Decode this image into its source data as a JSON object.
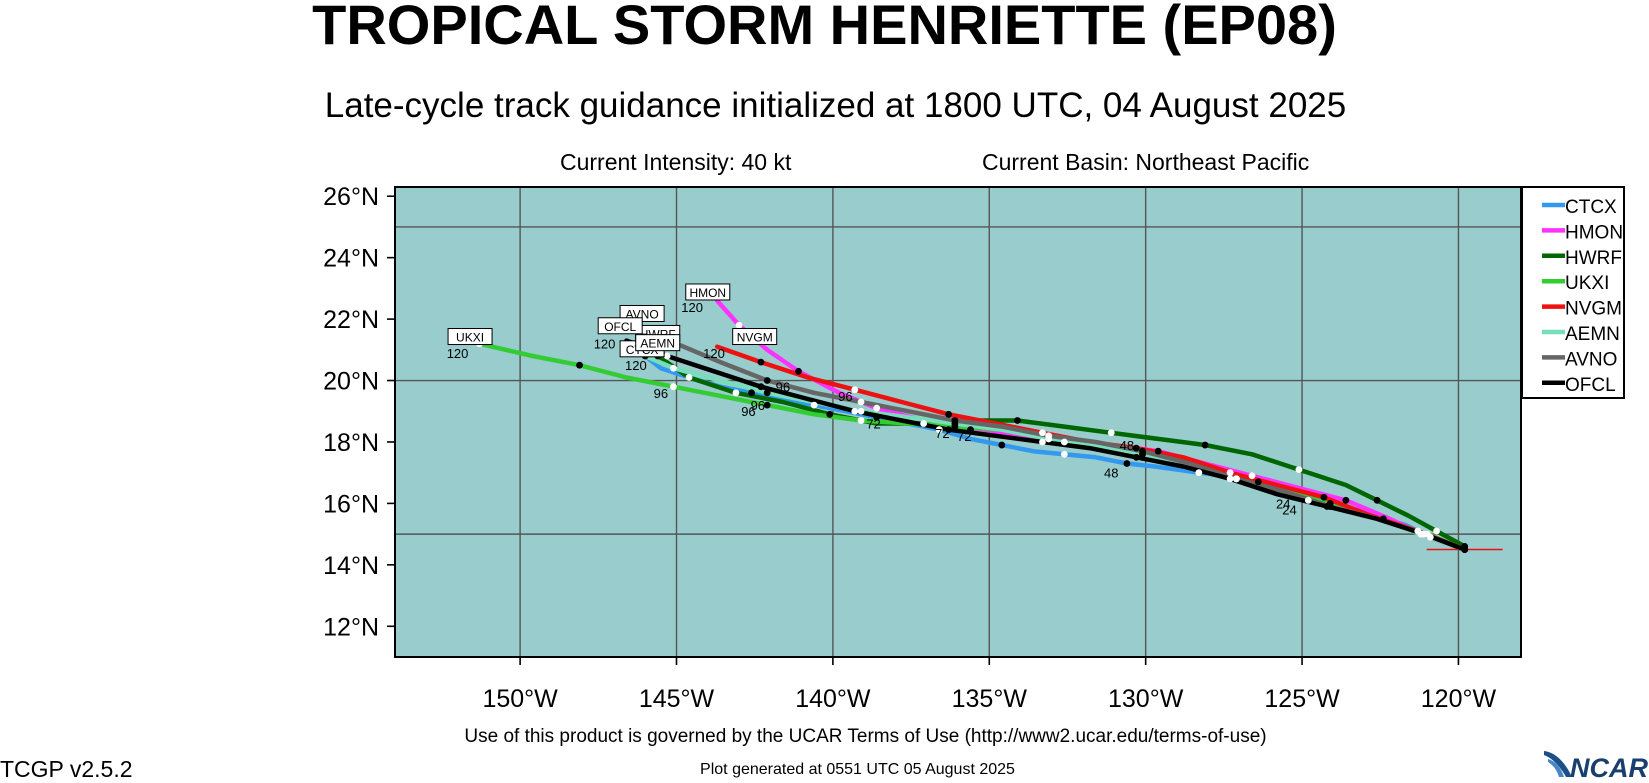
{
  "header": {
    "title": "TROPICAL STORM HENRIETTE (EP08)",
    "subtitle": "Late-cycle track guidance initialized at 1800 UTC, 04 August 2025",
    "intensity": "Current Intensity: 40 kt",
    "basin": "Current Basin: Northeast Pacific"
  },
  "footer": {
    "terms": "Use of this product is governed by the UCAR Terms of Use (http://www2.ucar.edu/terms-of-use)",
    "version": "TCGP v2.5.2",
    "generated": "Plot generated at 0551 UTC   05 August 2025",
    "logo_text": "NCAR"
  },
  "colors": {
    "ocean": "#99cccc",
    "CTCX": "#3399ee",
    "HMON": "#ff33ff",
    "HWRF": "#006600",
    "UKXI": "#33cc33",
    "NVGM": "#ee1111",
    "AEMN": "#77ddbb",
    "AVNO": "#666666",
    "OFCL": "#000000"
  },
  "chart_data": {
    "type": "line",
    "xlim": [
      -154,
      -118
    ],
    "ylim": [
      11,
      26.3
    ],
    "x_ticks": [
      {
        "value": -150,
        "label": "150°W"
      },
      {
        "value": -145,
        "label": "145°W"
      },
      {
        "value": -140,
        "label": "140°W"
      },
      {
        "value": -135,
        "label": "135°W"
      },
      {
        "value": -130,
        "label": "130°W"
      },
      {
        "value": -125,
        "label": "125°W"
      },
      {
        "value": -120,
        "label": "120°W"
      }
    ],
    "y_ticks": [
      {
        "value": 12,
        "label": "12°N"
      },
      {
        "value": 14,
        "label": "14°N"
      },
      {
        "value": 16,
        "label": "16°N"
      },
      {
        "value": 18,
        "label": "18°N"
      },
      {
        "value": 20,
        "label": "20°N"
      },
      {
        "value": 22,
        "label": "22°N"
      },
      {
        "value": 24,
        "label": "24°N"
      },
      {
        "value": 26,
        "label": "26°N"
      }
    ],
    "gridlines": {
      "lon": [
        -150,
        -145,
        -140,
        -135,
        -130,
        -125,
        -120
      ],
      "lat": [
        15,
        20,
        25
      ]
    },
    "legend_position": "right",
    "current_position": {
      "lon": -119.8,
      "lat": 14.5
    },
    "series": [
      {
        "name": "CTCX",
        "points": [
          [
            -119.8,
            14.5
          ],
          [
            -120.9,
            14.9
          ],
          [
            -121.7,
            15.3
          ],
          [
            -122.4,
            15.5
          ],
          [
            -123.3,
            15.8
          ],
          [
            -124.8,
            16.1
          ],
          [
            -125.6,
            16.4
          ],
          [
            -126.4,
            16.7
          ],
          [
            -127.4,
            16.9
          ],
          [
            -128.3,
            17.0
          ],
          [
            -129.7,
            17.2
          ],
          [
            -130.6,
            17.3
          ],
          [
            -131.6,
            17.5
          ],
          [
            -132.6,
            17.6
          ],
          [
            -133.6,
            17.7
          ],
          [
            -134.6,
            17.9
          ],
          [
            -135.6,
            18.1
          ],
          [
            -136.6,
            18.4
          ],
          [
            -137.6,
            18.6
          ],
          [
            -138.6,
            18.8
          ],
          [
            -139.6,
            19.0
          ],
          [
            -140.6,
            19.2
          ],
          [
            -141.6,
            19.4
          ],
          [
            -142.6,
            19.6
          ],
          [
            -143.6,
            19.8
          ],
          [
            -144.6,
            20.1
          ],
          [
            -145.5,
            20.4
          ],
          [
            -146.0,
            20.8
          ]
        ],
        "labels": [
          {
            "text": "24",
            "lon": -125.6,
            "lat": 16.0
          },
          {
            "text": "48",
            "lon": -131.1,
            "lat": 17.0
          },
          {
            "text": "72",
            "lon": -135.8,
            "lat": 18.2
          },
          {
            "text": "96",
            "lon": -142.7,
            "lat": 19.0
          },
          {
            "text": "120",
            "lon": -146.3,
            "lat": 20.5
          }
        ],
        "label_box": {
          "text": "CTCX",
          "lon": -146.1,
          "lat": 21.0
        }
      },
      {
        "name": "HMON",
        "points": [
          [
            -119.8,
            14.5
          ],
          [
            -121.2,
            15.0
          ],
          [
            -122.2,
            15.5
          ],
          [
            -123.6,
            16.1
          ],
          [
            -125.1,
            16.5
          ],
          [
            -126.6,
            16.9
          ],
          [
            -128.1,
            17.3
          ],
          [
            -129.6,
            17.7
          ],
          [
            -131.1,
            17.9
          ],
          [
            -132.6,
            18.0
          ],
          [
            -134.1,
            18.2
          ],
          [
            -135.6,
            18.4
          ],
          [
            -137.1,
            18.7
          ],
          [
            -138.6,
            19.1
          ],
          [
            -139.8,
            19.6
          ],
          [
            -141.1,
            20.3
          ],
          [
            -142.1,
            21.0
          ],
          [
            -143.0,
            21.8
          ],
          [
            -143.7,
            22.6
          ]
        ],
        "labels": [
          {
            "text": "120",
            "lon": -144.5,
            "lat": 22.4
          }
        ],
        "label_box": {
          "text": "HMON",
          "lon": -144.0,
          "lat": 22.85
        }
      },
      {
        "name": "HWRF",
        "points": [
          [
            -119.8,
            14.6
          ],
          [
            -120.7,
            15.1
          ],
          [
            -121.6,
            15.6
          ],
          [
            -122.6,
            16.1
          ],
          [
            -123.6,
            16.6
          ],
          [
            -125.1,
            17.1
          ],
          [
            -126.6,
            17.6
          ],
          [
            -128.1,
            17.9
          ],
          [
            -129.6,
            18.1
          ],
          [
            -131.1,
            18.3
          ],
          [
            -132.6,
            18.5
          ],
          [
            -134.1,
            18.7
          ],
          [
            -135.6,
            18.7
          ],
          [
            -137.1,
            18.6
          ],
          [
            -138.6,
            18.6
          ],
          [
            -140.1,
            18.9
          ],
          [
            -141.6,
            19.3
          ],
          [
            -143.1,
            19.6
          ],
          [
            -144.6,
            20.1
          ],
          [
            -145.6,
            20.8
          ],
          [
            -146.2,
            21.1
          ]
        ],
        "labels": [
          {
            "text": "48",
            "lon": -130.6,
            "lat": 17.9
          },
          {
            "text": "72",
            "lon": -136.5,
            "lat": 18.3
          }
        ],
        "label_box": {
          "text": "HWRF",
          "lon": -145.6,
          "lat": 21.5
        }
      },
      {
        "name": "UKXI",
        "points": [
          [
            -119.8,
            14.5
          ],
          [
            -121.0,
            15.0
          ],
          [
            -122.6,
            15.5
          ],
          [
            -124.1,
            16.0
          ],
          [
            -125.6,
            16.4
          ],
          [
            -127.1,
            16.8
          ],
          [
            -128.6,
            17.2
          ],
          [
            -130.1,
            17.6
          ],
          [
            -131.6,
            17.9
          ],
          [
            -133.1,
            18.1
          ],
          [
            -134.6,
            18.4
          ],
          [
            -136.1,
            18.5
          ],
          [
            -137.6,
            18.6
          ],
          [
            -139.1,
            18.7
          ],
          [
            -140.6,
            18.9
          ],
          [
            -142.1,
            19.2
          ],
          [
            -143.6,
            19.5
          ],
          [
            -145.1,
            19.8
          ],
          [
            -146.6,
            20.1
          ],
          [
            -148.1,
            20.5
          ],
          [
            -149.6,
            20.8
          ],
          [
            -151.3,
            21.2
          ]
        ],
        "labels": [
          {
            "text": "24",
            "lon": -125.4,
            "lat": 15.8
          },
          {
            "text": "96",
            "lon": -145.5,
            "lat": 19.6
          },
          {
            "text": "120",
            "lon": -152.0,
            "lat": 20.9
          }
        ],
        "label_box": {
          "text": "UKXI",
          "lon": -151.6,
          "lat": 21.4
        }
      },
      {
        "name": "NVGM",
        "points": [
          [
            -119.8,
            14.5
          ],
          [
            -121.3,
            15.1
          ],
          [
            -122.8,
            15.6
          ],
          [
            -124.3,
            16.2
          ],
          [
            -125.8,
            16.6
          ],
          [
            -127.3,
            17.0
          ],
          [
            -128.8,
            17.5
          ],
          [
            -130.3,
            17.8
          ],
          [
            -131.8,
            18.0
          ],
          [
            -133.3,
            18.3
          ],
          [
            -134.8,
            18.6
          ],
          [
            -136.3,
            18.9
          ],
          [
            -137.8,
            19.3
          ],
          [
            -139.3,
            19.7
          ],
          [
            -140.8,
            20.1
          ],
          [
            -142.3,
            20.6
          ],
          [
            -143.7,
            21.1
          ]
        ],
        "labels": [
          {
            "text": "96",
            "lon": -139.6,
            "lat": 19.5
          },
          {
            "text": "120",
            "lon": -143.8,
            "lat": 20.9
          }
        ],
        "label_box": {
          "text": "NVGM",
          "lon": -142.5,
          "lat": 21.4
        }
      },
      {
        "name": "AEMN",
        "points": [
          [
            -119.8,
            14.5
          ],
          [
            -121.2,
            15.0
          ],
          [
            -122.6,
            15.5
          ],
          [
            -124.1,
            15.9
          ],
          [
            -125.6,
            16.3
          ],
          [
            -127.1,
            16.8
          ],
          [
            -128.6,
            17.2
          ],
          [
            -130.1,
            17.6
          ],
          [
            -131.6,
            17.9
          ],
          [
            -133.1,
            18.1
          ],
          [
            -134.6,
            18.4
          ],
          [
            -136.1,
            18.6
          ],
          [
            -137.6,
            18.8
          ],
          [
            -139.1,
            19.0
          ],
          [
            -140.6,
            19.3
          ],
          [
            -142.1,
            19.6
          ],
          [
            -143.6,
            20.0
          ],
          [
            -145.1,
            20.4
          ],
          [
            -146.0,
            20.8
          ]
        ],
        "labels": [
          {
            "text": "72",
            "lon": -138.7,
            "lat": 18.6
          }
        ],
        "label_box": {
          "text": "AEMN",
          "lon": -145.6,
          "lat": 21.2
        }
      },
      {
        "name": "AVNO",
        "points": [
          [
            -119.8,
            14.5
          ],
          [
            -121.1,
            15.0
          ],
          [
            -122.6,
            15.5
          ],
          [
            -124.1,
            15.9
          ],
          [
            -125.6,
            16.4
          ],
          [
            -127.1,
            16.8
          ],
          [
            -128.6,
            17.3
          ],
          [
            -130.1,
            17.7
          ],
          [
            -131.6,
            18.0
          ],
          [
            -133.1,
            18.2
          ],
          [
            -134.6,
            18.5
          ],
          [
            -136.1,
            18.7
          ],
          [
            -137.6,
            19.0
          ],
          [
            -139.1,
            19.3
          ],
          [
            -140.6,
            19.6
          ],
          [
            -142.1,
            20.0
          ],
          [
            -143.6,
            20.6
          ],
          [
            -145.0,
            21.2
          ],
          [
            -146.0,
            21.7
          ]
        ],
        "labels": [
          {
            "text": "96",
            "lon": -141.6,
            "lat": 19.8
          },
          {
            "text": "120",
            "lon": -146.6,
            "lat": 21.7
          }
        ],
        "label_box": {
          "text": "AVNO",
          "lon": -146.1,
          "lat": 22.15
        }
      },
      {
        "name": "OFCL",
        "points": [
          [
            -119.8,
            14.5
          ],
          [
            -121.1,
            15.0
          ],
          [
            -122.6,
            15.5
          ],
          [
            -124.2,
            15.9
          ],
          [
            -125.8,
            16.3
          ],
          [
            -127.3,
            16.8
          ],
          [
            -128.8,
            17.2
          ],
          [
            -130.3,
            17.5
          ],
          [
            -131.8,
            17.8
          ],
          [
            -133.3,
            18.0
          ],
          [
            -134.8,
            18.2
          ],
          [
            -136.3,
            18.4
          ],
          [
            -137.8,
            18.7
          ],
          [
            -139.3,
            19.0
          ],
          [
            -140.8,
            19.4
          ],
          [
            -142.3,
            19.8
          ],
          [
            -143.8,
            20.3
          ],
          [
            -145.3,
            20.8
          ],
          [
            -146.6,
            21.3
          ]
        ],
        "labels": [
          {
            "text": "96",
            "lon": -142.4,
            "lat": 19.2
          },
          {
            "text": "120",
            "lon": -147.3,
            "lat": 21.2
          }
        ],
        "label_box": {
          "text": "OFCL",
          "lon": -146.8,
          "lat": 21.75
        }
      }
    ]
  }
}
